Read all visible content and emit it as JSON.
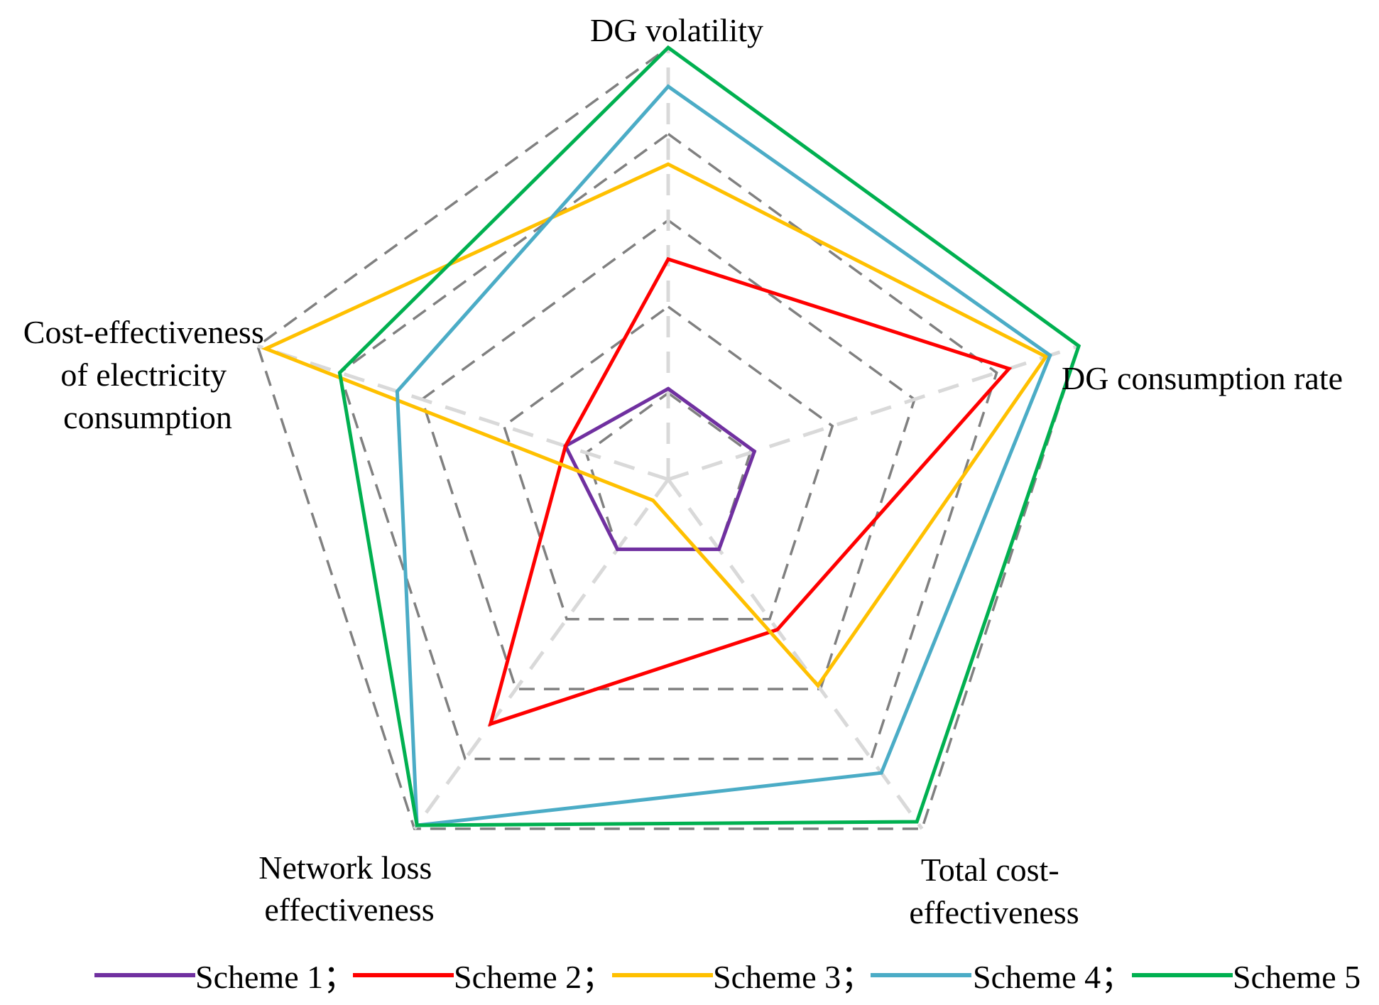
{
  "chart_data": {
    "type": "radar",
    "title": "",
    "axes": [
      {
        "label_lines": [
          "DG volatility"
        ]
      },
      {
        "label_lines": [
          "DG consumption rate"
        ]
      },
      {
        "label_lines": [
          "Total cost-",
          "effectiveness"
        ]
      },
      {
        "label_lines": [
          "Network loss",
          "effectiveness"
        ]
      },
      {
        "label_lines": [
          "Cost-effectiveness",
          "of electricity",
          "consumption"
        ]
      }
    ],
    "range": [
      0,
      1
    ],
    "grid_levels": [
      0.2,
      0.4,
      0.6,
      0.8,
      1.0
    ],
    "series": [
      {
        "name": "Scheme 1",
        "legend_label": "Scheme 1；",
        "color": "#7030a0",
        "values": [
          0.21,
          0.21,
          0.2,
          0.2,
          0.25
        ]
      },
      {
        "name": "Scheme 2",
        "legend_label": "Scheme 2；",
        "color": "#ff0000",
        "values": [
          0.51,
          0.83,
          0.43,
          0.7,
          0.25
        ]
      },
      {
        "name": "Scheme 3",
        "legend_label": "Scheme 3；",
        "color": "#ffc000",
        "values": [
          0.73,
          0.92,
          0.59,
          0.06,
          0.98
        ]
      },
      {
        "name": "Scheme 4",
        "legend_label": "Scheme 4；",
        "color": "#4bacc6",
        "values": [
          0.91,
          0.93,
          0.84,
          0.99,
          0.66
        ]
      },
      {
        "name": "Scheme 5",
        "legend_label": "Scheme 5",
        "color": "#00b050",
        "values": [
          1.0,
          1.0,
          0.98,
          0.99,
          0.8
        ]
      }
    ],
    "legend_position": "bottom"
  }
}
